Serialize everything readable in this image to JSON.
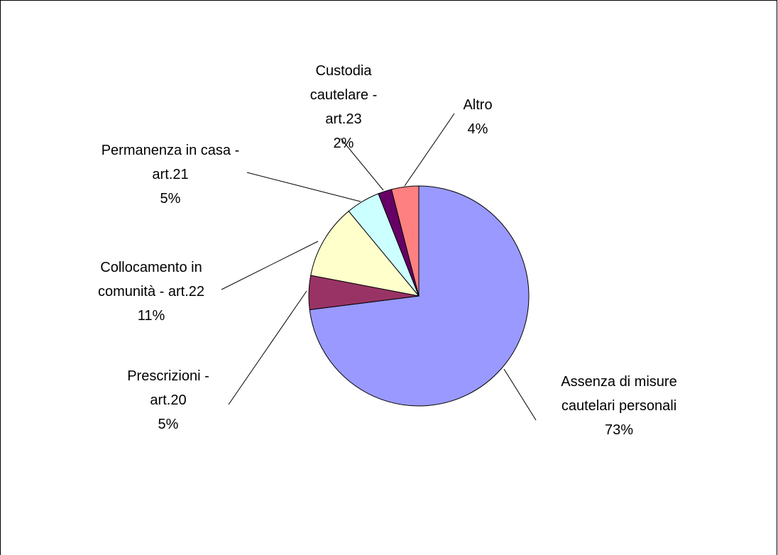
{
  "chart_data": {
    "type": "pie",
    "categories": [
      "Assenza di misure cautelari personali",
      "Prescrizioni - art.20",
      "Collocamento in comunità - art.22",
      "Permanenza in casa - art.21",
      "Custodia cautelare - art.23",
      "Altro"
    ],
    "values": [
      73,
      5,
      11,
      5,
      2,
      4
    ],
    "value_labels": [
      "73%",
      "5%",
      "11%",
      "5%",
      "2%",
      "4%"
    ],
    "colors": [
      "#9999ff",
      "#993366",
      "#ffffcc",
      "#ccffff",
      "#660066",
      "#ff8080"
    ]
  }
}
